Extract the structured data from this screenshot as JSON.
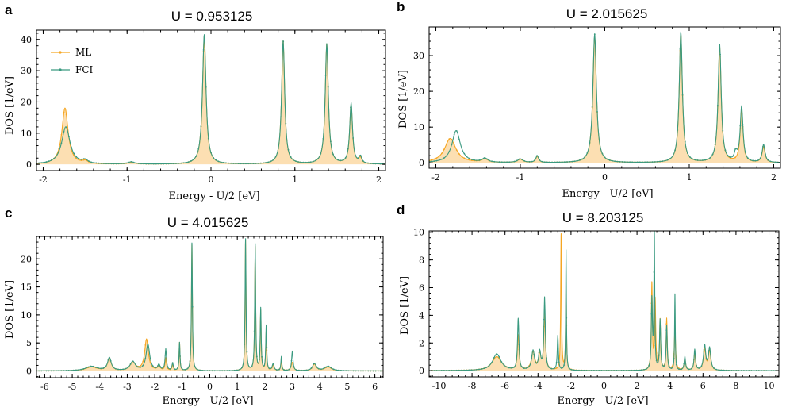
{
  "colors": {
    "ml": "#f5a623",
    "ml_fill": "#fbd9a4",
    "fci": "#3a9a80",
    "axis": "#000000"
  },
  "chart_data": [
    {
      "type": "line",
      "panel_label": "a",
      "title": "U = 0.953125",
      "xlabel": "Energy - U/2 [eV]",
      "ylabel": "DOS [1/eV]",
      "xlim": [
        -2.08,
        2.08
      ],
      "ylim": [
        -2,
        43
      ],
      "xticks": [
        -2,
        -1,
        0,
        1,
        2
      ],
      "xtick_labels": [
        "-2",
        "-1",
        "0",
        "1",
        "2"
      ],
      "yticks": [
        0,
        10,
        20,
        30,
        40
      ],
      "ytick_labels": [
        "0",
        "10",
        "20",
        "30",
        "40"
      ],
      "legend": {
        "position": "top-left",
        "entries": [
          "ML",
          "FCI"
        ]
      },
      "gamma": 0.03,
      "series": [
        {
          "name": "ML",
          "peaks": [
            [
              -1.74,
              18.0,
              0.045
            ],
            [
              -1.5,
              0.8,
              0.04
            ],
            [
              -0.95,
              0.6,
              0.05
            ],
            [
              -0.08,
              41.0,
              0.025
            ],
            [
              0.86,
              39.5,
              0.022
            ],
            [
              1.38,
              38.5,
              0.022
            ],
            [
              1.67,
              19.0,
              0.02
            ],
            [
              1.78,
              1.8,
              0.02
            ]
          ]
        },
        {
          "name": "FCI",
          "peaks": [
            [
              -1.73,
              12.0,
              0.06
            ],
            [
              -1.5,
              1.0,
              0.04
            ],
            [
              -0.95,
              0.7,
              0.05
            ],
            [
              -0.08,
              41.5,
              0.025
            ],
            [
              0.86,
              39.5,
              0.022
            ],
            [
              1.38,
              38.5,
              0.022
            ],
            [
              1.67,
              19.5,
              0.02
            ],
            [
              1.78,
              2.2,
              0.02
            ]
          ]
        }
      ]
    },
    {
      "type": "line",
      "panel_label": "b",
      "title": "U = 2.015625",
      "xlabel": "Energy - U/2 [eV]",
      "ylabel": "DOS [1/eV]",
      "xlim": [
        -2.08,
        2.08
      ],
      "ylim": [
        -1.5,
        38
      ],
      "xticks": [
        -2,
        -1,
        0,
        1,
        2
      ],
      "xtick_labels": [
        "-2",
        "-1",
        "0",
        "1",
        "2"
      ],
      "yticks": [
        0,
        10,
        20,
        30
      ],
      "ytick_labels": [
        "0",
        "10",
        "20",
        "30"
      ],
      "gamma": 0.03,
      "series": [
        {
          "name": "ML",
          "peaks": [
            [
              -1.83,
              6.8,
              0.08
            ],
            [
              -1.42,
              1.0,
              0.04
            ],
            [
              -1.0,
              0.9,
              0.04
            ],
            [
              -0.8,
              1.7,
              0.02
            ],
            [
              -0.12,
              35.5,
              0.025
            ],
            [
              0.9,
              36.0,
              0.022
            ],
            [
              1.36,
              32.5,
              0.022
            ],
            [
              1.62,
              14.8,
              0.02
            ],
            [
              1.88,
              4.5,
              0.02
            ]
          ]
        },
        {
          "name": "FCI",
          "peaks": [
            [
              -1.76,
              9.0,
              0.06
            ],
            [
              -1.42,
              1.1,
              0.04
            ],
            [
              -1.0,
              1.0,
              0.04
            ],
            [
              -0.8,
              1.9,
              0.02
            ],
            [
              -0.12,
              36.0,
              0.025
            ],
            [
              0.9,
              36.5,
              0.022
            ],
            [
              1.36,
              33.0,
              0.022
            ],
            [
              1.55,
              2.4,
              0.02
            ],
            [
              1.62,
              15.5,
              0.02
            ],
            [
              1.88,
              5.0,
              0.02
            ]
          ]
        }
      ]
    },
    {
      "type": "line",
      "panel_label": "c",
      "title": "U = 4.015625",
      "xlabel": "Energy - U/2 [eV]",
      "ylabel": "DOS [1/eV]",
      "xlim": [
        -6.3,
        6.3
      ],
      "ylim": [
        -1.2,
        24
      ],
      "xticks": [
        -6,
        -5,
        -4,
        -3,
        -2,
        -1,
        0,
        1,
        2,
        3,
        4,
        5,
        6
      ],
      "xtick_labels": [
        "-6",
        "-5",
        "-4",
        "-3",
        "-2",
        "-1",
        "0",
        "1",
        "2",
        "3",
        "4",
        "5",
        "6"
      ],
      "yticks": [
        0,
        5,
        10,
        15,
        20
      ],
      "ytick_labels": [
        "0",
        "5",
        "10",
        "15",
        "20"
      ],
      "gamma": 0.05,
      "series": [
        {
          "name": "ML",
          "peaks": [
            [
              -4.3,
              0.7,
              0.25
            ],
            [
              -3.65,
              2.2,
              0.08
            ],
            [
              -2.8,
              1.5,
              0.12
            ],
            [
              -2.3,
              5.6,
              0.08
            ],
            [
              -1.85,
              0.9,
              0.05
            ],
            [
              -1.6,
              2.2,
              0.03
            ],
            [
              -1.35,
              1.0,
              0.03
            ],
            [
              -1.1,
              5.0,
              0.02
            ],
            [
              -0.65,
              22.5,
              0.02
            ],
            [
              1.3,
              23.2,
              0.02
            ],
            [
              1.65,
              22.0,
              0.02
            ],
            [
              1.85,
              10.5,
              0.02
            ],
            [
              2.05,
              7.0,
              0.02
            ],
            [
              2.3,
              1.0,
              0.04
            ],
            [
              2.6,
              1.5,
              0.03
            ],
            [
              3.0,
              1.5,
              0.05
            ],
            [
              3.8,
              1.2,
              0.08
            ],
            [
              4.3,
              0.7,
              0.15
            ]
          ]
        },
        {
          "name": "FCI",
          "peaks": [
            [
              -4.3,
              0.8,
              0.25
            ],
            [
              -3.65,
              2.3,
              0.08
            ],
            [
              -2.8,
              1.6,
              0.12
            ],
            [
              -2.25,
              4.7,
              0.08
            ],
            [
              -1.85,
              1.0,
              0.05
            ],
            [
              -1.6,
              3.8,
              0.03
            ],
            [
              -1.35,
              1.3,
              0.03
            ],
            [
              -1.1,
              5.0,
              0.02
            ],
            [
              -0.65,
              22.8,
              0.02
            ],
            [
              1.3,
              23.5,
              0.02
            ],
            [
              1.65,
              22.5,
              0.02
            ],
            [
              1.85,
              11.0,
              0.02
            ],
            [
              2.05,
              8.0,
              0.02
            ],
            [
              2.3,
              1.2,
              0.04
            ],
            [
              2.6,
              2.5,
              0.02
            ],
            [
              3.0,
              3.5,
              0.03
            ],
            [
              3.8,
              1.3,
              0.08
            ],
            [
              4.3,
              0.8,
              0.15
            ]
          ]
        }
      ]
    },
    {
      "type": "line",
      "panel_label": "d",
      "title": "U = 8.203125",
      "xlabel": "Energy - U/2 [eV]",
      "ylabel": "DOS [1/eV]",
      "xlim": [
        -10.6,
        10.6
      ],
      "ylim": [
        -0.45,
        10.1
      ],
      "xticks": [
        -10,
        -8,
        -6,
        -4,
        -2,
        0,
        2,
        4,
        6,
        8,
        10
      ],
      "xtick_labels": [
        "-10",
        "-8",
        "-6",
        "-4",
        "-2",
        "0",
        "2",
        "4",
        "6",
        "8",
        "10"
      ],
      "yticks": [
        0,
        2,
        4,
        6,
        8,
        10
      ],
      "ytick_labels": [
        "0",
        "2",
        "4",
        "6",
        "8",
        "10"
      ],
      "gamma": 0.08,
      "series": [
        {
          "name": "ML",
          "peaks": [
            [
              -6.5,
              1.0,
              0.35
            ],
            [
              -5.2,
              2.5,
              0.06
            ],
            [
              -4.3,
              1.3,
              0.12
            ],
            [
              -3.9,
              1.2,
              0.08
            ],
            [
              -3.6,
              4.0,
              0.06
            ],
            [
              -2.6,
              9.8,
              0.03
            ],
            [
              -2.3,
              6.0,
              0.03
            ],
            [
              2.9,
              6.2,
              0.04
            ],
            [
              3.1,
              5.0,
              0.04
            ],
            [
              3.4,
              3.6,
              0.04
            ],
            [
              3.8,
              3.7,
              0.04
            ],
            [
              4.3,
              2.8,
              0.05
            ],
            [
              4.9,
              0.8,
              0.06
            ],
            [
              5.5,
              1.2,
              0.06
            ],
            [
              6.1,
              1.6,
              0.08
            ],
            [
              6.4,
              1.5,
              0.08
            ]
          ]
        },
        {
          "name": "FCI",
          "peaks": [
            [
              -6.5,
              1.2,
              0.3
            ],
            [
              -5.2,
              3.7,
              0.05
            ],
            [
              -4.3,
              1.4,
              0.1
            ],
            [
              -3.9,
              1.3,
              0.08
            ],
            [
              -3.6,
              5.2,
              0.05
            ],
            [
              -2.8,
              2.5,
              0.04
            ],
            [
              -2.3,
              8.7,
              0.025
            ],
            [
              2.9,
              5.0,
              0.04
            ],
            [
              3.05,
              10.0,
              0.03
            ],
            [
              3.4,
              3.6,
              0.04
            ],
            [
              3.8,
              3.2,
              0.04
            ],
            [
              4.3,
              5.5,
              0.025
            ],
            [
              4.9,
              1.0,
              0.05
            ],
            [
              5.5,
              1.5,
              0.05
            ],
            [
              6.1,
              1.8,
              0.08
            ],
            [
              6.4,
              1.6,
              0.08
            ]
          ]
        }
      ]
    }
  ]
}
